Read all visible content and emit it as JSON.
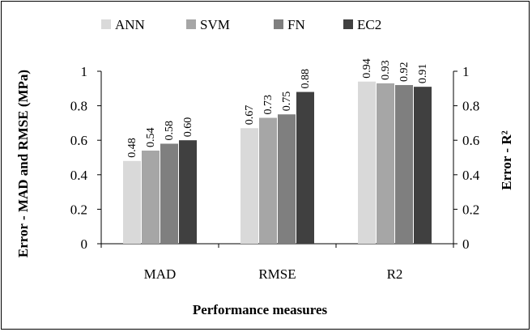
{
  "chart_data": {
    "type": "bar",
    "categories": [
      "MAD",
      "RMSE",
      "R2"
    ],
    "series": [
      {
        "name": "ANN",
        "values": [
          0.48,
          0.67,
          0.94
        ],
        "labels": [
          "0.48",
          "0.67",
          "0.94"
        ],
        "color": "#d9d9d9"
      },
      {
        "name": "SVM",
        "values": [
          0.54,
          0.73,
          0.93
        ],
        "labels": [
          "0.54",
          "0.73",
          "0.93"
        ],
        "color": "#a6a6a6"
      },
      {
        "name": "FN",
        "values": [
          0.58,
          0.75,
          0.92
        ],
        "labels": [
          "0.58",
          "0.75",
          "0.92"
        ],
        "color": "#7f7f7f"
      },
      {
        "name": "EC2",
        "values": [
          0.6,
          0.88,
          0.91
        ],
        "labels": [
          "0.60",
          "0.88",
          "0.91"
        ],
        "color": "#404040"
      }
    ],
    "xlabel": "Performance measures",
    "ylabel": "Error - MAD and RMSE (MPa)",
    "ylabel2": "Error - R²",
    "ylim": [
      0,
      1
    ],
    "yticks": [
      "0",
      "0.2",
      "0.4",
      "0.6",
      "0.8",
      "1"
    ],
    "legend_position": "top",
    "grid": false
  }
}
